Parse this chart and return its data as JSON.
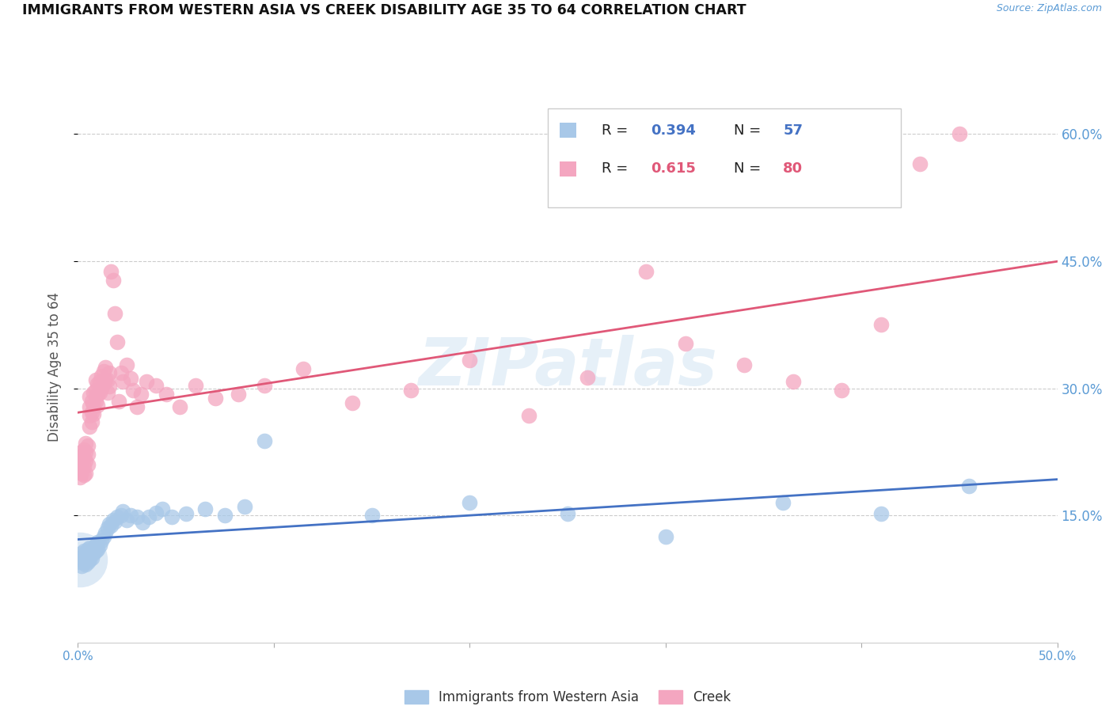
{
  "title": "IMMIGRANTS FROM WESTERN ASIA VS CREEK DISABILITY AGE 35 TO 64 CORRELATION CHART",
  "source": "Source: ZipAtlas.com",
  "xlabel_label": "Immigrants from Western Asia",
  "ylabel_label": "Disability Age 35 to 64",
  "x_min": 0.0,
  "x_max": 0.5,
  "y_min": 0.0,
  "y_max": 0.65,
  "yticks": [
    0.15,
    0.3,
    0.45,
    0.6
  ],
  "ytick_labels": [
    "15.0%",
    "30.0%",
    "45.0%",
    "60.0%"
  ],
  "xticks": [
    0.0,
    0.1,
    0.2,
    0.3,
    0.4,
    0.5
  ],
  "xtick_labels": [
    "0.0%",
    "",
    "",
    "",
    "",
    "50.0%"
  ],
  "blue_R": 0.394,
  "blue_N": 57,
  "pink_R": 0.615,
  "pink_N": 80,
  "blue_color": "#a8c8e8",
  "pink_color": "#f4a6c0",
  "blue_line_color": "#4472c4",
  "pink_line_color": "#e05878",
  "watermark": "ZIPatlas",
  "blue_scatter_x": [
    0.001,
    0.001,
    0.002,
    0.002,
    0.002,
    0.003,
    0.003,
    0.003,
    0.004,
    0.004,
    0.004,
    0.005,
    0.005,
    0.005,
    0.006,
    0.006,
    0.006,
    0.007,
    0.007,
    0.008,
    0.008,
    0.009,
    0.009,
    0.01,
    0.01,
    0.011,
    0.012,
    0.013,
    0.014,
    0.015,
    0.016,
    0.017,
    0.018,
    0.019,
    0.02,
    0.022,
    0.023,
    0.025,
    0.027,
    0.03,
    0.033,
    0.036,
    0.04,
    0.043,
    0.048,
    0.055,
    0.065,
    0.075,
    0.085,
    0.095,
    0.15,
    0.2,
    0.25,
    0.3,
    0.36,
    0.41,
    0.455
  ],
  "blue_scatter_y": [
    0.095,
    0.1,
    0.09,
    0.1,
    0.105,
    0.095,
    0.1,
    0.108,
    0.092,
    0.098,
    0.105,
    0.095,
    0.103,
    0.11,
    0.098,
    0.105,
    0.112,
    0.1,
    0.108,
    0.105,
    0.112,
    0.108,
    0.115,
    0.11,
    0.118,
    0.115,
    0.12,
    0.125,
    0.13,
    0.135,
    0.14,
    0.138,
    0.145,
    0.143,
    0.148,
    0.15,
    0.155,
    0.145,
    0.15,
    0.148,
    0.142,
    0.148,
    0.153,
    0.158,
    0.148,
    0.152,
    0.158,
    0.15,
    0.16,
    0.238,
    0.15,
    0.165,
    0.152,
    0.125,
    0.165,
    0.152,
    0.185
  ],
  "pink_scatter_x": [
    0.001,
    0.001,
    0.001,
    0.002,
    0.002,
    0.002,
    0.002,
    0.003,
    0.003,
    0.003,
    0.003,
    0.004,
    0.004,
    0.004,
    0.004,
    0.005,
    0.005,
    0.005,
    0.006,
    0.006,
    0.006,
    0.006,
    0.007,
    0.007,
    0.007,
    0.008,
    0.008,
    0.008,
    0.009,
    0.009,
    0.009,
    0.01,
    0.01,
    0.01,
    0.011,
    0.011,
    0.012,
    0.012,
    0.013,
    0.013,
    0.014,
    0.014,
    0.015,
    0.015,
    0.016,
    0.016,
    0.017,
    0.018,
    0.019,
    0.02,
    0.021,
    0.022,
    0.023,
    0.025,
    0.027,
    0.028,
    0.03,
    0.032,
    0.035,
    0.04,
    0.045,
    0.052,
    0.06,
    0.07,
    0.082,
    0.095,
    0.115,
    0.14,
    0.17,
    0.2,
    0.23,
    0.26,
    0.29,
    0.31,
    0.34,
    0.365,
    0.39,
    0.41,
    0.43,
    0.45
  ],
  "pink_scatter_y": [
    0.195,
    0.205,
    0.215,
    0.2,
    0.21,
    0.22,
    0.225,
    0.198,
    0.208,
    0.218,
    0.228,
    0.2,
    0.215,
    0.225,
    0.235,
    0.21,
    0.222,
    0.232,
    0.255,
    0.268,
    0.278,
    0.29,
    0.26,
    0.272,
    0.285,
    0.27,
    0.28,
    0.295,
    0.285,
    0.298,
    0.31,
    0.28,
    0.292,
    0.305,
    0.295,
    0.308,
    0.3,
    0.315,
    0.305,
    0.32,
    0.31,
    0.325,
    0.295,
    0.31,
    0.302,
    0.318,
    0.438,
    0.428,
    0.388,
    0.355,
    0.285,
    0.318,
    0.308,
    0.328,
    0.312,
    0.298,
    0.278,
    0.293,
    0.308,
    0.303,
    0.293,
    0.278,
    0.303,
    0.288,
    0.293,
    0.303,
    0.323,
    0.283,
    0.298,
    0.333,
    0.268,
    0.313,
    0.438,
    0.353,
    0.328,
    0.308,
    0.298,
    0.375,
    0.565,
    0.6
  ]
}
